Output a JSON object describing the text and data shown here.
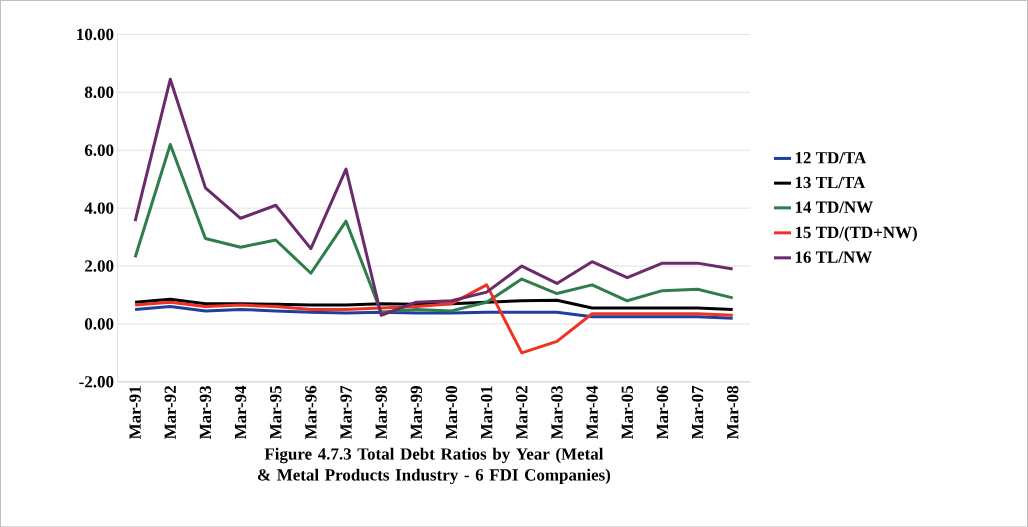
{
  "chart_data": {
    "type": "line",
    "title": "Figure 4.7.3  Total Debt Ratios by Year (Metal & Metal Products Industry - 6 FDI Companies)",
    "categories": [
      "Mar-91",
      "Mar-92",
      "Mar-93",
      "Mar-94",
      "Mar-95",
      "Mar-96",
      "Mar-97",
      "Mar-98",
      "Mar-99",
      "Mar-00",
      "Mar-01",
      "Mar-02",
      "Mar-03",
      "Mar-04",
      "Mar-05",
      "Mar-06",
      "Mar-07",
      "Mar-08"
    ],
    "series": [
      {
        "name": "12 TD/TA",
        "color": "#1f3f9a",
        "values": [
          0.5,
          0.6,
          0.45,
          0.5,
          0.45,
          0.4,
          0.38,
          0.4,
          0.38,
          0.38,
          0.4,
          0.4,
          0.4,
          0.25,
          0.25,
          0.25,
          0.25,
          0.2
        ]
      },
      {
        "name": "13 TL/TA",
        "color": "#000000",
        "values": [
          0.75,
          0.85,
          0.7,
          0.7,
          0.68,
          0.65,
          0.65,
          0.7,
          0.68,
          0.7,
          0.75,
          0.8,
          0.82,
          0.55,
          0.55,
          0.55,
          0.55,
          0.5
        ]
      },
      {
        "name": "14 TD/NW",
        "color": "#2e7d4a",
        "values": [
          2.3,
          6.2,
          2.95,
          2.65,
          2.9,
          1.75,
          3.55,
          0.4,
          0.5,
          0.45,
          0.75,
          1.55,
          1.05,
          1.35,
          0.8,
          1.15,
          1.2,
          0.9
        ]
      },
      {
        "name": "15 TD/(TD+NW)",
        "color": "#ee3322",
        "values": [
          0.65,
          0.75,
          0.6,
          0.65,
          0.6,
          0.5,
          0.5,
          0.55,
          0.6,
          0.7,
          1.35,
          -1.0,
          -0.6,
          0.35,
          0.35,
          0.35,
          0.35,
          0.3
        ]
      },
      {
        "name": "16 TL/NW",
        "color": "#6b2a6b",
        "values": [
          3.55,
          8.45,
          4.7,
          3.65,
          4.1,
          2.6,
          5.35,
          0.3,
          0.75,
          0.8,
          1.1,
          2.0,
          1.4,
          2.15,
          1.6,
          2.1,
          2.1,
          1.9
        ]
      }
    ],
    "ylim": [
      -2,
      10
    ],
    "yticks": [
      {
        "value": -2,
        "label": "-2.00"
      },
      {
        "value": 0,
        "label": "0.00"
      },
      {
        "value": 2,
        "label": "2.00"
      },
      {
        "value": 4,
        "label": "4.00"
      },
      {
        "value": 6,
        "label": "6.00"
      },
      {
        "value": 8,
        "label": "8.00"
      },
      {
        "value": 10,
        "label": "10.00"
      }
    ],
    "grid": "y",
    "legend": "right",
    "marker": "none",
    "line_style": "solid"
  }
}
